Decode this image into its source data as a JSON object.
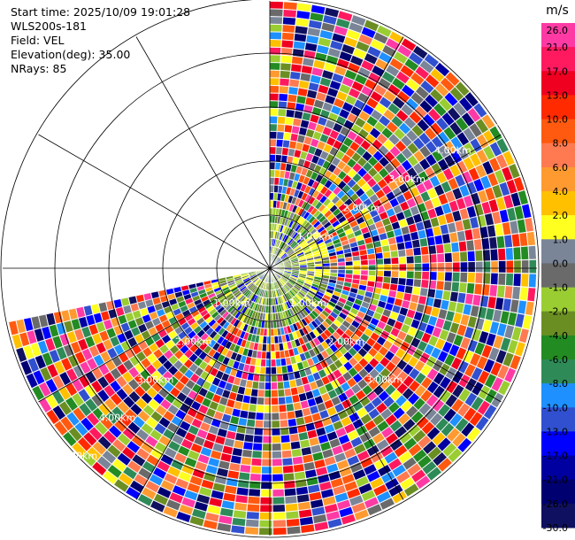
{
  "header": {
    "start_time": "Start time: 2025/10/09 19:01:28",
    "instrument": "WLS200s-181",
    "field": "Field: VEL",
    "elevation": "Elevation(deg): 35.00",
    "nrays": "NRays: 85"
  },
  "colorbar": {
    "unit": "m/s",
    "ticks": [
      "26.0",
      "21.0",
      "17.0",
      "13.0",
      "10.0",
      "8.0",
      "6.0",
      "4.0",
      "2.0",
      "1.0",
      "0.0",
      "-1.0",
      "-2.0",
      "-4.0",
      "-6.0",
      "-8.0",
      "-10.0",
      "-13.0",
      "-17.0",
      "-21.0",
      "-26.0",
      "-30.0"
    ],
    "colors": [
      "#ff3aa5",
      "#ff1a60",
      "#f00020",
      "#ff2a00",
      "#ff5a10",
      "#ff7a50",
      "#ff9a30",
      "#ffc000",
      "#ffff20",
      "#7a8598",
      "#6a6a6a",
      "#9acd32",
      "#6b8e23",
      "#228b22",
      "#2e8b57",
      "#1e90ff",
      "#3050d0",
      "#0000ff",
      "#0000a0",
      "#000070",
      "#101060"
    ]
  },
  "ring_labels": {
    "lower": [
      "1.00km",
      "2.00km",
      "3.00km",
      "4.00km",
      "5.00km"
    ],
    "upper": [
      "1.00km",
      "2.00km",
      "3.00km",
      "4.00km",
      "5"
    ]
  }
}
